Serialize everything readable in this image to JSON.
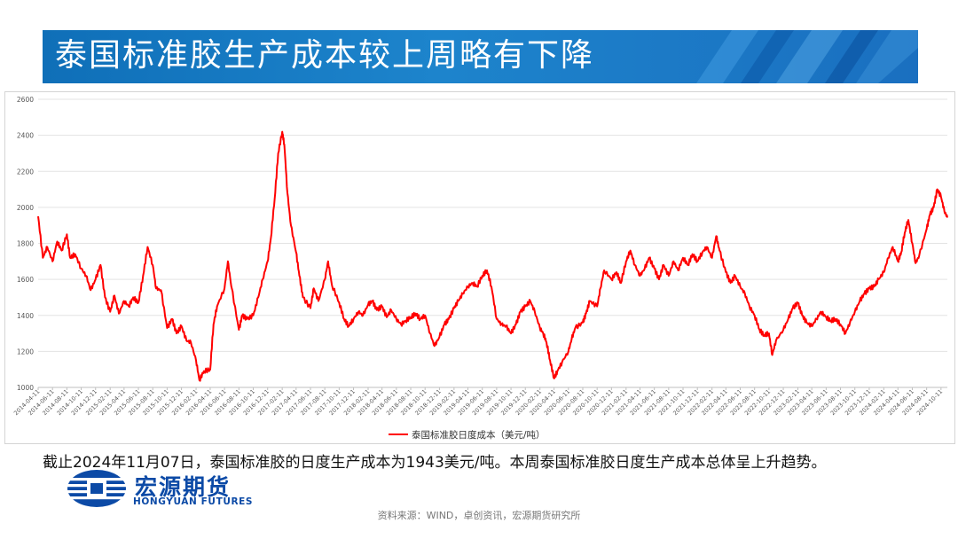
{
  "header": {
    "title": "泰国标准胶生产成本较上周略有下降"
  },
  "caption": "截止2024年11月07日，泰国标准胶的日度生产成本为1943美元/吨。本周泰国标准胶日度生产成本总体呈上升趋势。",
  "logo": {
    "name_cn": "宏源期货",
    "name_en": "HONGYUAN FUTURES"
  },
  "source": "资料来源：WIND，卓创资讯，宏源期货研究所",
  "colors": {
    "banner": "#1a7cc6",
    "series": "#ff0000",
    "logo": "#0c4aa6"
  },
  "chart_data": {
    "type": "line",
    "title": "",
    "xlabel": "",
    "ylabel": "",
    "ylim": [
      1000,
      2600
    ],
    "yticks": [
      1000,
      1200,
      1400,
      1600,
      1800,
      2000,
      2200,
      2400,
      2600
    ],
    "grid": "horizontal",
    "legend_position": "bottom-center",
    "x_tick_labels": [
      "2014-04-11",
      "2014-06-11",
      "2014-08-11",
      "2014-10-11",
      "2014-12-11",
      "2015-02-11",
      "2015-04-11",
      "2015-06-11",
      "2015-08-11",
      "2015-10-11",
      "2015-12-11",
      "2016-02-11",
      "2016-04-11",
      "2016-06-11",
      "2016-08-11",
      "2016-10-11",
      "2016-12-11",
      "2017-02-11",
      "2017-04-11",
      "2017-06-11",
      "2017-08-11",
      "2017-10-11",
      "2017-12-11",
      "2018-02-11",
      "2018-04-11",
      "2018-06-11",
      "2018-08-11",
      "2018-10-11",
      "2018-12-11",
      "2019-02-11",
      "2019-04-11",
      "2019-06-11",
      "2019-08-11",
      "2019-10-11",
      "2019-12-11",
      "2020-02-11",
      "2020-04-11",
      "2020-06-11",
      "2020-08-11",
      "2020-10-11",
      "2020-12-11",
      "2021-02-11",
      "2021-04-11",
      "2021-06-11",
      "2021-08-11",
      "2021-10-11",
      "2021-12-11",
      "2022-02-11",
      "2022-04-11",
      "2022-06-11",
      "2022-08-11",
      "2022-10-11",
      "2022-12-11",
      "2023-02-11",
      "2023-04-11",
      "2023-06-11",
      "2023-08-11",
      "2023-10-11",
      "2023-12-11",
      "2024-02-11",
      "2024-04-11",
      "2024-06-11",
      "2024-08-11",
      "2024-10-11"
    ],
    "series": [
      {
        "name": "泰国标准胶日度成本（美元/吨）",
        "points": [
          [
            "2014-04-11",
            1950
          ],
          [
            "2014-05-01",
            1720
          ],
          [
            "2014-05-20",
            1780
          ],
          [
            "2014-06-11",
            1700
          ],
          [
            "2014-07-01",
            1810
          ],
          [
            "2014-07-20",
            1760
          ],
          [
            "2014-08-11",
            1850
          ],
          [
            "2014-08-25",
            1720
          ],
          [
            "2014-09-15",
            1740
          ],
          [
            "2014-10-11",
            1660
          ],
          [
            "2014-11-01",
            1620
          ],
          [
            "2014-11-20",
            1540
          ],
          [
            "2014-12-11",
            1600
          ],
          [
            "2015-01-01",
            1680
          ],
          [
            "2015-01-20",
            1500
          ],
          [
            "2015-02-11",
            1420
          ],
          [
            "2015-03-01",
            1510
          ],
          [
            "2015-03-20",
            1410
          ],
          [
            "2015-04-11",
            1480
          ],
          [
            "2015-05-01",
            1450
          ],
          [
            "2015-05-20",
            1500
          ],
          [
            "2015-06-11",
            1470
          ],
          [
            "2015-07-01",
            1620
          ],
          [
            "2015-07-20",
            1780
          ],
          [
            "2015-08-11",
            1680
          ],
          [
            "2015-08-25",
            1550
          ],
          [
            "2015-09-15",
            1540
          ],
          [
            "2015-10-11",
            1330
          ],
          [
            "2015-11-01",
            1380
          ],
          [
            "2015-11-20",
            1300
          ],
          [
            "2015-12-11",
            1340
          ],
          [
            "2016-01-01",
            1260
          ],
          [
            "2016-01-20",
            1250
          ],
          [
            "2016-02-11",
            1150
          ],
          [
            "2016-02-25",
            1040
          ],
          [
            "2016-03-15",
            1090
          ],
          [
            "2016-04-11",
            1100
          ],
          [
            "2016-04-25",
            1350
          ],
          [
            "2016-05-10",
            1450
          ],
          [
            "2016-06-11",
            1550
          ],
          [
            "2016-06-25",
            1700
          ],
          [
            "2016-07-10",
            1560
          ],
          [
            "2016-08-11",
            1320
          ],
          [
            "2016-08-25",
            1400
          ],
          [
            "2016-09-15",
            1380
          ],
          [
            "2016-10-11",
            1400
          ],
          [
            "2016-11-01",
            1500
          ],
          [
            "2016-11-20",
            1600
          ],
          [
            "2016-12-11",
            1700
          ],
          [
            "2016-12-25",
            1830
          ],
          [
            "2017-01-10",
            2050
          ],
          [
            "2017-01-25",
            2300
          ],
          [
            "2017-02-11",
            2420
          ],
          [
            "2017-02-20",
            2350
          ],
          [
            "2017-03-05",
            2080
          ],
          [
            "2017-03-20",
            1900
          ],
          [
            "2017-04-11",
            1750
          ],
          [
            "2017-04-25",
            1620
          ],
          [
            "2017-05-10",
            1500
          ],
          [
            "2017-06-11",
            1440
          ],
          [
            "2017-06-25",
            1550
          ],
          [
            "2017-07-15",
            1480
          ],
          [
            "2017-08-11",
            1600
          ],
          [
            "2017-08-25",
            1700
          ],
          [
            "2017-09-10",
            1570
          ],
          [
            "2017-10-11",
            1470
          ],
          [
            "2017-11-01",
            1380
          ],
          [
            "2017-11-20",
            1340
          ],
          [
            "2017-12-11",
            1380
          ],
          [
            "2018-01-01",
            1420
          ],
          [
            "2018-01-20",
            1400
          ],
          [
            "2018-02-11",
            1460
          ],
          [
            "2018-03-01",
            1480
          ],
          [
            "2018-03-20",
            1430
          ],
          [
            "2018-04-11",
            1450
          ],
          [
            "2018-05-01",
            1390
          ],
          [
            "2018-05-20",
            1430
          ],
          [
            "2018-06-11",
            1380
          ],
          [
            "2018-07-01",
            1350
          ],
          [
            "2018-07-20",
            1370
          ],
          [
            "2018-08-11",
            1390
          ],
          [
            "2018-09-01",
            1410
          ],
          [
            "2018-09-20",
            1380
          ],
          [
            "2018-10-11",
            1400
          ],
          [
            "2018-11-01",
            1300
          ],
          [
            "2018-11-20",
            1230
          ],
          [
            "2018-12-11",
            1280
          ],
          [
            "2019-01-01",
            1350
          ],
          [
            "2019-01-20",
            1380
          ],
          [
            "2019-02-11",
            1440
          ],
          [
            "2019-03-01",
            1480
          ],
          [
            "2019-03-20",
            1520
          ],
          [
            "2019-04-11",
            1560
          ],
          [
            "2019-05-01",
            1580
          ],
          [
            "2019-05-20",
            1560
          ],
          [
            "2019-06-11",
            1620
          ],
          [
            "2019-07-01",
            1650
          ],
          [
            "2019-07-20",
            1560
          ],
          [
            "2019-08-11",
            1380
          ],
          [
            "2019-09-01",
            1350
          ],
          [
            "2019-09-20",
            1340
          ],
          [
            "2019-10-11",
            1300
          ],
          [
            "2019-11-01",
            1350
          ],
          [
            "2019-11-20",
            1420
          ],
          [
            "2019-12-11",
            1450
          ],
          [
            "2020-01-01",
            1480
          ],
          [
            "2020-01-20",
            1420
          ],
          [
            "2020-02-11",
            1330
          ],
          [
            "2020-02-25",
            1300
          ],
          [
            "2020-03-10",
            1250
          ],
          [
            "2020-03-25",
            1150
          ],
          [
            "2020-04-11",
            1050
          ],
          [
            "2020-04-25",
            1090
          ],
          [
            "2020-05-15",
            1140
          ],
          [
            "2020-06-11",
            1200
          ],
          [
            "2020-06-25",
            1270
          ],
          [
            "2020-07-10",
            1330
          ],
          [
            "2020-08-11",
            1360
          ],
          [
            "2020-08-25",
            1410
          ],
          [
            "2020-09-10",
            1480
          ],
          [
            "2020-10-11",
            1450
          ],
          [
            "2020-10-25",
            1550
          ],
          [
            "2020-11-10",
            1650
          ],
          [
            "2020-12-11",
            1600
          ],
          [
            "2021-01-01",
            1640
          ],
          [
            "2021-01-20",
            1580
          ],
          [
            "2021-02-11",
            1700
          ],
          [
            "2021-03-01",
            1760
          ],
          [
            "2021-03-20",
            1680
          ],
          [
            "2021-04-11",
            1620
          ],
          [
            "2021-05-01",
            1660
          ],
          [
            "2021-05-20",
            1720
          ],
          [
            "2021-06-11",
            1660
          ],
          [
            "2021-07-01",
            1600
          ],
          [
            "2021-07-20",
            1680
          ],
          [
            "2021-08-11",
            1620
          ],
          [
            "2021-09-01",
            1700
          ],
          [
            "2021-09-20",
            1650
          ],
          [
            "2021-10-11",
            1720
          ],
          [
            "2021-11-01",
            1680
          ],
          [
            "2021-11-20",
            1740
          ],
          [
            "2021-12-11",
            1700
          ],
          [
            "2022-01-01",
            1750
          ],
          [
            "2022-01-20",
            1780
          ],
          [
            "2022-02-11",
            1720
          ],
          [
            "2022-03-01",
            1840
          ],
          [
            "2022-03-15",
            1760
          ],
          [
            "2022-04-11",
            1640
          ],
          [
            "2022-05-01",
            1580
          ],
          [
            "2022-05-20",
            1620
          ],
          [
            "2022-06-11",
            1560
          ],
          [
            "2022-07-01",
            1520
          ],
          [
            "2022-07-20",
            1450
          ],
          [
            "2022-08-11",
            1400
          ],
          [
            "2022-09-01",
            1320
          ],
          [
            "2022-09-20",
            1290
          ],
          [
            "2022-10-11",
            1300
          ],
          [
            "2022-10-25",
            1180
          ],
          [
            "2022-11-10",
            1260
          ],
          [
            "2022-12-11",
            1320
          ],
          [
            "2023-01-01",
            1380
          ],
          [
            "2023-01-20",
            1440
          ],
          [
            "2023-02-11",
            1470
          ],
          [
            "2023-03-01",
            1400
          ],
          [
            "2023-03-20",
            1360
          ],
          [
            "2023-04-11",
            1340
          ],
          [
            "2023-05-01",
            1380
          ],
          [
            "2023-05-20",
            1420
          ],
          [
            "2023-06-11",
            1390
          ],
          [
            "2023-07-01",
            1370
          ],
          [
            "2023-07-20",
            1380
          ],
          [
            "2023-08-11",
            1350
          ],
          [
            "2023-09-01",
            1300
          ],
          [
            "2023-09-20",
            1360
          ],
          [
            "2023-10-11",
            1420
          ],
          [
            "2023-11-01",
            1480
          ],
          [
            "2023-11-20",
            1520
          ],
          [
            "2023-12-11",
            1550
          ],
          [
            "2024-01-01",
            1560
          ],
          [
            "2024-01-20",
            1600
          ],
          [
            "2024-02-11",
            1640
          ],
          [
            "2024-03-01",
            1720
          ],
          [
            "2024-03-20",
            1780
          ],
          [
            "2024-04-11",
            1700
          ],
          [
            "2024-04-25",
            1750
          ],
          [
            "2024-05-10",
            1860
          ],
          [
            "2024-05-25",
            1930
          ],
          [
            "2024-06-11",
            1800
          ],
          [
            "2024-06-25",
            1690
          ],
          [
            "2024-07-10",
            1730
          ],
          [
            "2024-08-11",
            1880
          ],
          [
            "2024-08-25",
            1960
          ],
          [
            "2024-09-10",
            2000
          ],
          [
            "2024-09-25",
            2100
          ],
          [
            "2024-10-11",
            2060
          ],
          [
            "2024-10-25",
            1980
          ],
          [
            "2024-11-07",
            1943
          ]
        ]
      }
    ]
  }
}
